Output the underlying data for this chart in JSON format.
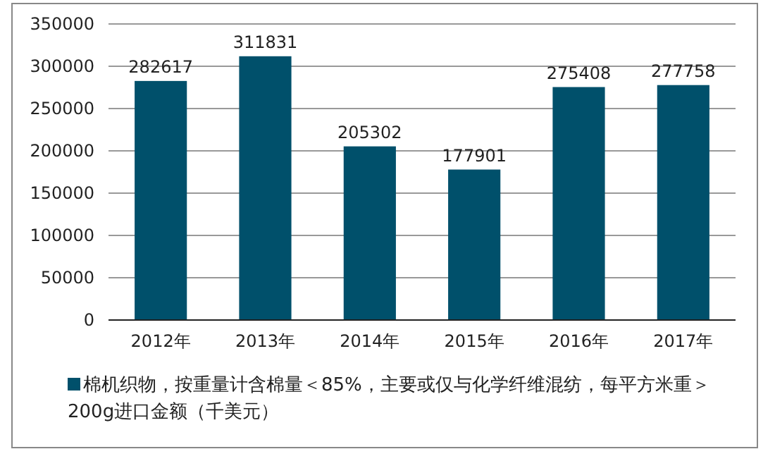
{
  "chart_data": {
    "type": "bar",
    "categories": [
      "2012年",
      "2013年",
      "2014年",
      "2015年",
      "2016年",
      "2017年"
    ],
    "series": [
      {
        "name": "棉机织物，按重量计含棉量＜85%，主要或仅与化学纤维混纺，每平方米重＞200g进口金额（千美元）",
        "color": "#00506b",
        "values": [
          282617,
          311831,
          205302,
          177901,
          275408,
          277758
        ]
      }
    ],
    "ylim": [
      0,
      350000
    ],
    "yticks": [
      0,
      50000,
      100000,
      150000,
      200000,
      250000,
      300000,
      350000
    ],
    "grid": "y",
    "data_labels": true,
    "legend": "bottom"
  }
}
